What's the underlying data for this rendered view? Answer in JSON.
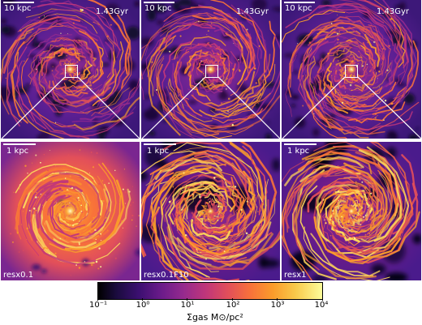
{
  "top_panels": [
    {
      "scale_label": "10 kpc",
      "time_label": "1.43Gyr"
    },
    {
      "scale_label": "10 kpc",
      "time_label": "1.43Gyr"
    },
    {
      "scale_label": "10 kpc",
      "time_label": "1.43Gyr"
    }
  ],
  "bottom_panels": [
    {
      "scale_label": "1 kpc",
      "run_label": "resx0.1"
    },
    {
      "scale_label": "1 kpc",
      "run_label": "resx0.1F10"
    },
    {
      "scale_label": "1 kpc",
      "run_label": "resx1"
    }
  ],
  "colorbar": {
    "tick_labels": [
      "10⁻¹",
      "10⁰",
      "10¹",
      "10²",
      "10³",
      "10⁴"
    ],
    "title": "Σgas M⊙/pc²",
    "colormap_stops": [
      "#000000",
      "#3b0f70",
      "#952a8e",
      "#e24f5a",
      "#fb9c2b",
      "#fcfd9a"
    ]
  },
  "colors": {
    "background": "#ffffff",
    "annotation": "#ffffff",
    "panel_base": "#4a1b8c"
  }
}
